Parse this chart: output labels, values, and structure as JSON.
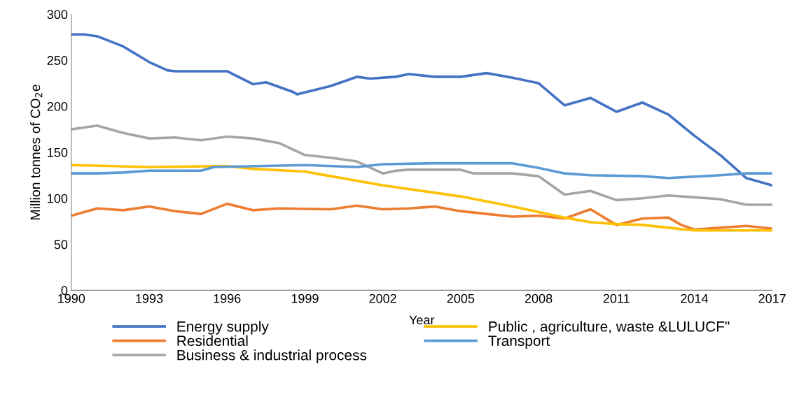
{
  "chart_data": {
    "type": "line",
    "xlabel": "Year",
    "ylabel": "Million tonnes of CO$_{2}$e",
    "xlim": [
      1990,
      2017
    ],
    "xticks": [
      1990,
      1993,
      1996,
      1999,
      2002,
      2005,
      2008,
      2011,
      2014,
      2017
    ],
    "ylim": [
      0,
      300
    ],
    "yticks": [
      0,
      50,
      100,
      150,
      200,
      250,
      300
    ],
    "grid": false,
    "legend": "bottom",
    "marker": "none",
    "line_style": "solid",
    "series": [
      {
        "name": "Energy supply",
        "color": "#4472c4",
        "x": [
          1990,
          1990.5,
          1991,
          1992,
          1993,
          1993.7,
          1994,
          1995,
          1996,
          1997,
          1997.5,
          1998.5,
          1998.7,
          2000,
          2001,
          2001.5,
          2002.5,
          2003,
          2004,
          2005,
          2006,
          2007,
          2008,
          2009,
          2010,
          2011,
          2012,
          2013,
          2014,
          2015,
          2016,
          2017
        ],
        "values": [
          278,
          278,
          276,
          265,
          248,
          239,
          238,
          238,
          238,
          224,
          226,
          216,
          213,
          222,
          232,
          230,
          232,
          235,
          232,
          232,
          236,
          231,
          225,
          201,
          209,
          194,
          204,
          191,
          168,
          147,
          122,
          114
        ]
      },
      {
        "name": "Residential",
        "color": "#ed7d31",
        "x": [
          1990,
          1991,
          1992,
          1993,
          1994,
          1995,
          1996,
          1997,
          1998,
          2000,
          2001,
          2002,
          2003,
          2004,
          2005,
          2006,
          2007,
          2008,
          2009,
          2010,
          2011,
          2012,
          2013,
          2013.5,
          2014,
          2015,
          2016,
          2017
        ],
        "values": [
          81,
          89,
          87,
          91,
          86,
          83,
          94,
          87,
          89,
          88,
          92,
          88,
          89,
          91,
          86,
          83,
          80,
          81,
          78,
          88,
          71,
          78,
          79,
          71,
          66,
          68,
          70,
          67
        ]
      },
      {
        "name": "Business & industrial process",
        "color": "#a5a5a5",
        "x": [
          1990,
          1991,
          1992,
          1993,
          1994,
          1995,
          1996,
          1997,
          1998,
          1999,
          2000,
          2001,
          2002,
          2002.5,
          2003,
          2005,
          2005.5,
          2007,
          2008,
          2009,
          2010,
          2011,
          2012,
          2013,
          2014,
          2015,
          2016,
          2017
        ],
        "values": [
          175,
          179,
          171,
          165,
          166,
          163,
          167,
          165,
          160,
          147,
          144,
          140,
          127,
          130,
          131,
          131,
          127,
          127,
          124,
          104,
          108,
          98,
          100,
          103,
          101,
          99,
          93,
          93
        ]
      },
      {
        "name": "Public , agriculture, waste &LULUCF\"",
        "color": "#ffc000",
        "x": [
          1990,
          1993,
          1996,
          1997,
          1999,
          2000,
          2002,
          2005,
          2007,
          2008,
          2009,
          2010,
          2011,
          2012,
          2013,
          2014,
          2017
        ],
        "values": [
          136,
          134,
          135,
          132,
          129,
          124,
          114,
          102,
          91,
          85,
          79,
          74,
          72,
          71,
          68,
          65,
          65
        ]
      },
      {
        "name": "Transport",
        "color": "#5b9bd5",
        "x": [
          1990,
          1991,
          1992,
          1993,
          1995,
          1995.5,
          1999,
          2001,
          2002,
          2004,
          2007,
          2008,
          2009,
          2010,
          2012,
          2013,
          2015,
          2016,
          2017
        ],
        "values": [
          127,
          127,
          128,
          130,
          130,
          134,
          136,
          134,
          137,
          138,
          138,
          133,
          127,
          125,
          124,
          122,
          125,
          127,
          127
        ]
      }
    ]
  }
}
